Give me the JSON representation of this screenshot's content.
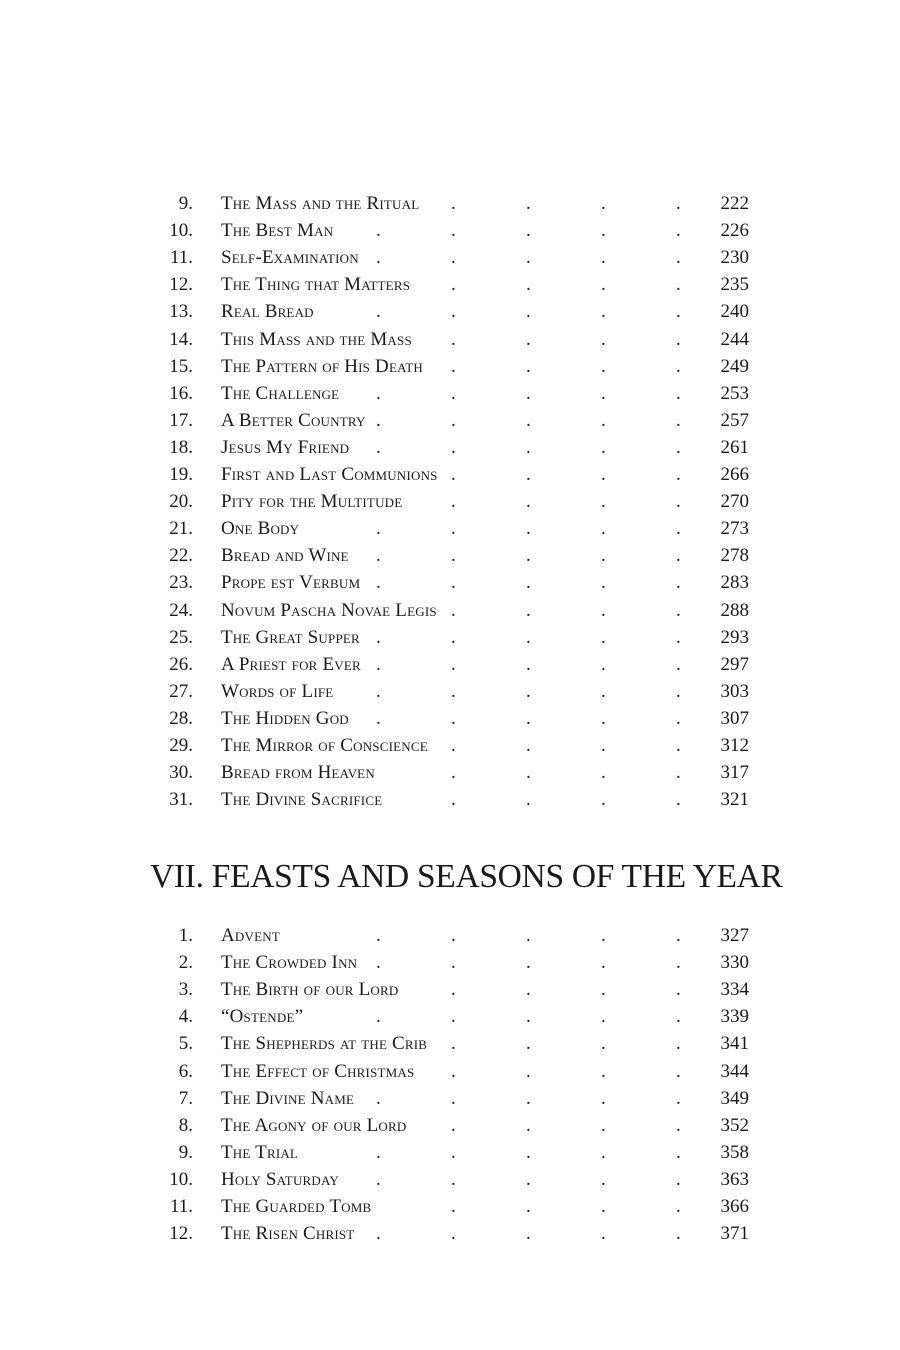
{
  "section_continued": {
    "entries": [
      {
        "number": "9.",
        "title": "The Mass and the Ritual",
        "page": "222"
      },
      {
        "number": "10.",
        "title": "The Best Man",
        "page": "226"
      },
      {
        "number": "11.",
        "title": "Self-Examination",
        "page": "230"
      },
      {
        "number": "12.",
        "title": "The Thing that Matters",
        "page": "235"
      },
      {
        "number": "13.",
        "title": "Real Bread",
        "page": "240"
      },
      {
        "number": "14.",
        "title": "This Mass and the Mass",
        "page": "244"
      },
      {
        "number": "15.",
        "title": "The Pattern of His Death",
        "page": "249"
      },
      {
        "number": "16.",
        "title": "The Challenge",
        "page": "253"
      },
      {
        "number": "17.",
        "title": "A Better Country",
        "page": "257"
      },
      {
        "number": "18.",
        "title": "Jesus My Friend",
        "page": "261"
      },
      {
        "number": "19.",
        "title": "First and Last Communions",
        "page": "266"
      },
      {
        "number": "20.",
        "title": "Pity for the Multitude",
        "page": "270"
      },
      {
        "number": "21.",
        "title": "One Body",
        "page": "273"
      },
      {
        "number": "22.",
        "title": "Bread and Wine",
        "page": "278"
      },
      {
        "number": "23.",
        "title": "Prope est Verbum",
        "page": "283"
      },
      {
        "number": "24.",
        "title": "Novum Pascha Novae Legis",
        "page": "288"
      },
      {
        "number": "25.",
        "title": "The Great Supper",
        "page": "293"
      },
      {
        "number": "26.",
        "title": "A Priest for Ever",
        "page": "297"
      },
      {
        "number": "27.",
        "title": "Words of Life",
        "page": "303"
      },
      {
        "number": "28.",
        "title": "The Hidden God",
        "page": "307"
      },
      {
        "number": "29.",
        "title": "The Mirror of Conscience",
        "page": "312"
      },
      {
        "number": "30.",
        "title": "Bread from Heaven",
        "page": "317"
      },
      {
        "number": "31.",
        "title": "The Divine Sacrifice",
        "page": "321"
      }
    ]
  },
  "section_vii": {
    "heading": "VII. FEASTS AND SEASONS OF THE YEAR",
    "entries": [
      {
        "number": "1.",
        "title": "Advent",
        "page": "327"
      },
      {
        "number": "2.",
        "title": "The Crowded Inn",
        "page": "330"
      },
      {
        "number": "3.",
        "title": "The Birth of our Lord",
        "page": "334"
      },
      {
        "number": "4.",
        "title": "“Ostende”",
        "page": "339"
      },
      {
        "number": "5.",
        "title": "The Shepherds at the Crib",
        "page": "341"
      },
      {
        "number": "6.",
        "title": "The Effect of Christmas",
        "page": "344"
      },
      {
        "number": "7.",
        "title": "The Divine Name",
        "page": "349"
      },
      {
        "number": "8.",
        "title": "The Agony of our Lord",
        "page": "352"
      },
      {
        "number": "9.",
        "title": "The Trial",
        "page": "358"
      },
      {
        "number": "10.",
        "title": "Holy Saturday",
        "page": "363"
      },
      {
        "number": "11.",
        "title": "The Guarded Tomb",
        "page": "366"
      },
      {
        "number": "12.",
        "title": "The Risen Christ",
        "page": "371"
      }
    ]
  }
}
